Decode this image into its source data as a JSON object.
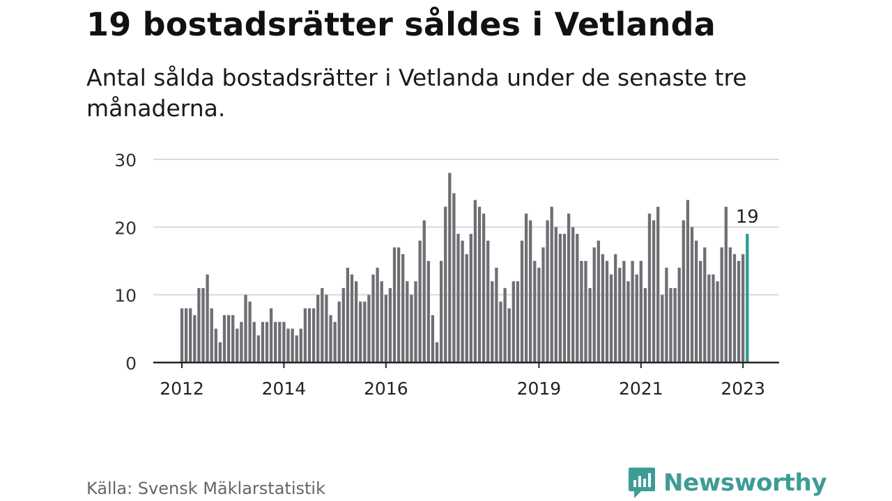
{
  "header": {
    "title": "19 bostadsrätter såldes i Vetlanda",
    "subtitle": "Antal sålda bostadsrätter i Vetlanda under de senaste tre månaderna."
  },
  "footer": {
    "source": "Källa: Svensk Mäklarstatistik",
    "brand": "Newsworthy",
    "brand_icon": "newsworthy-logo-icon"
  },
  "colors": {
    "bar": "#6f6e74",
    "highlight": "#2a9a93",
    "grid": "#d9d9d9",
    "axis": "#222222",
    "brand": "#3e9c95"
  },
  "chart_data": {
    "type": "bar",
    "title": "19 bostadsrätter såldes i Vetlanda",
    "xlabel": "",
    "ylabel": "",
    "ylim": [
      0,
      30
    ],
    "yticks": [
      0,
      10,
      20,
      30
    ],
    "grid": true,
    "start": "2012-01",
    "frequency": "monthly",
    "xtick_labels": [
      {
        "label": "2012",
        "index": 0
      },
      {
        "label": "2014",
        "index": 24
      },
      {
        "label": "2016",
        "index": 48
      },
      {
        "label": "2019",
        "index": 84
      },
      {
        "label": "2021",
        "index": 108
      },
      {
        "label": "2023",
        "index": 132
      }
    ],
    "values": [
      8,
      8,
      8,
      7,
      11,
      11,
      13,
      8,
      5,
      3,
      7,
      7,
      7,
      5,
      6,
      10,
      9,
      6,
      4,
      6,
      6,
      8,
      6,
      6,
      6,
      5,
      5,
      4,
      5,
      8,
      8,
      8,
      10,
      11,
      10,
      7,
      6,
      9,
      11,
      14,
      13,
      12,
      9,
      9,
      10,
      13,
      14,
      12,
      10,
      11,
      17,
      17,
      16,
      12,
      10,
      12,
      18,
      21,
      15,
      7,
      3,
      15,
      23,
      28,
      25,
      19,
      18,
      16,
      19,
      24,
      23,
      22,
      18,
      12,
      14,
      9,
      11,
      8,
      12,
      12,
      18,
      22,
      21,
      15,
      14,
      17,
      21,
      23,
      20,
      19,
      19,
      22,
      20,
      19,
      15,
      15,
      11,
      17,
      18,
      16,
      15,
      13,
      16,
      14,
      15,
      12,
      15,
      13,
      15,
      11,
      22,
      21,
      23,
      10,
      14,
      11,
      11,
      14,
      21,
      24,
      20,
      18,
      15,
      17,
      13,
      13,
      12,
      17,
      23,
      17,
      16,
      15,
      16,
      19
    ],
    "highlight_index": 133,
    "highlight_label": "19"
  }
}
